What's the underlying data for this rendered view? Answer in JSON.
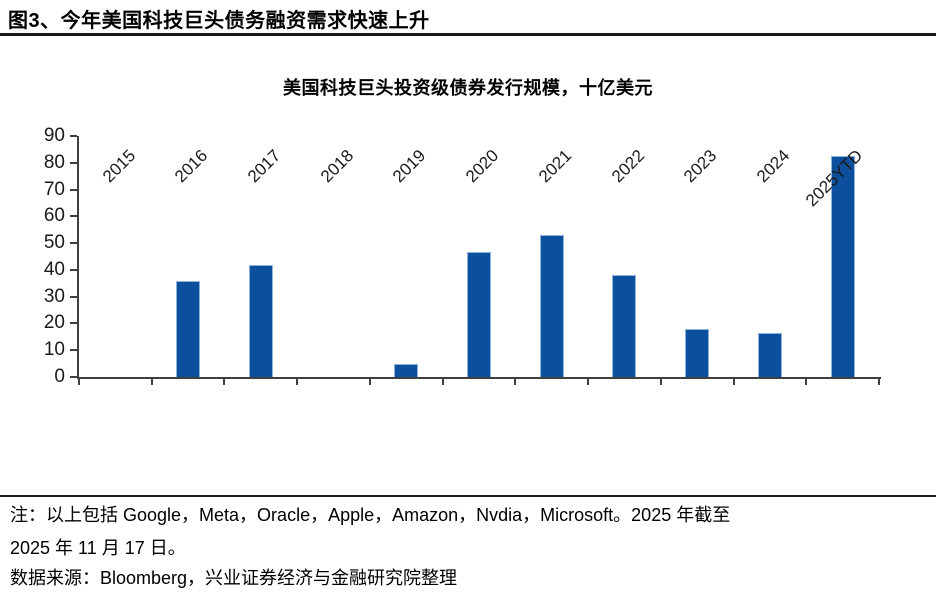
{
  "header": {
    "title": "图3、今年美国科技巨头债务融资需求快速上升"
  },
  "chart_data": {
    "type": "bar",
    "title": "美国科技巨头投资级债券发行规模，十亿美元",
    "categories": [
      "2015",
      "2016",
      "2017",
      "2018",
      "2019",
      "2020",
      "2021",
      "2022",
      "2023",
      "2024",
      "2025YTD"
    ],
    "values": [
      0,
      36,
      42,
      0,
      5,
      46.5,
      53,
      38,
      18,
      16.5,
      82.5
    ],
    "yticks": [
      0,
      10,
      20,
      30,
      40,
      50,
      60,
      70,
      80,
      90
    ],
    "ylim": [
      0,
      90
    ],
    "xlabel": "",
    "ylabel": "",
    "grid": false,
    "legend": "none",
    "bar_color": "#0b4f9d",
    "bar_border_color": "#8fb4dc",
    "axis_color": "#3f3f3f"
  },
  "footer": {
    "note_lines": [
      "注：以上包括 Google，Meta，Oracle，Apple，Amazon，Nvdia，Microsoft。2025 年截至",
      "2025 年 11 月 17 日。"
    ],
    "source": "数据来源：Bloomberg，兴业证券经济与金融研究院整理"
  }
}
